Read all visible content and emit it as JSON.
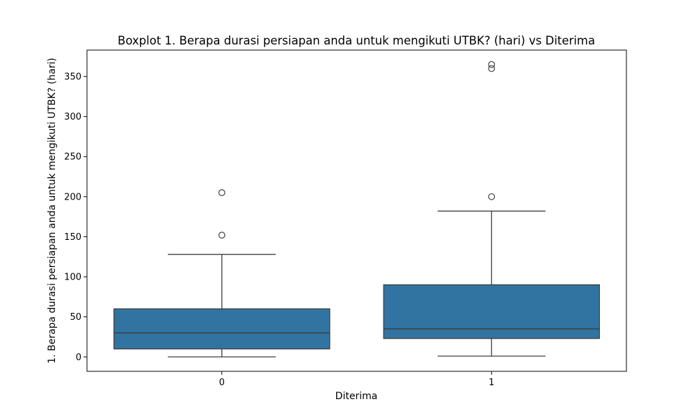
{
  "chart_data": {
    "type": "boxplot",
    "title": "Boxplot 1. Berapa durasi persiapan anda untuk mengikuti UTBK? (hari) vs Diterima",
    "xlabel": "Diterima",
    "ylabel": "1. Berapa durasi persiapan anda untuk mengikuti UTBK? (hari)",
    "categories": [
      "0",
      "1"
    ],
    "ylim": [
      -18,
      383
    ],
    "yticks": [
      "0",
      "50",
      "100",
      "150",
      "200",
      "250",
      "300",
      "350"
    ],
    "grid": false,
    "box_color": "#3274a1",
    "line_color": "#3d3d3d",
    "boxes": [
      {
        "category": "0",
        "whisker_low": 0,
        "q1": 10,
        "median": 30,
        "q3": 60,
        "whisker_high": 128,
        "outliers": [
          152,
          205
        ]
      },
      {
        "category": "1",
        "whisker_low": 1,
        "q1": 23,
        "median": 35,
        "q3": 90,
        "whisker_high": 182,
        "outliers": [
          200,
          360,
          365
        ]
      }
    ]
  }
}
